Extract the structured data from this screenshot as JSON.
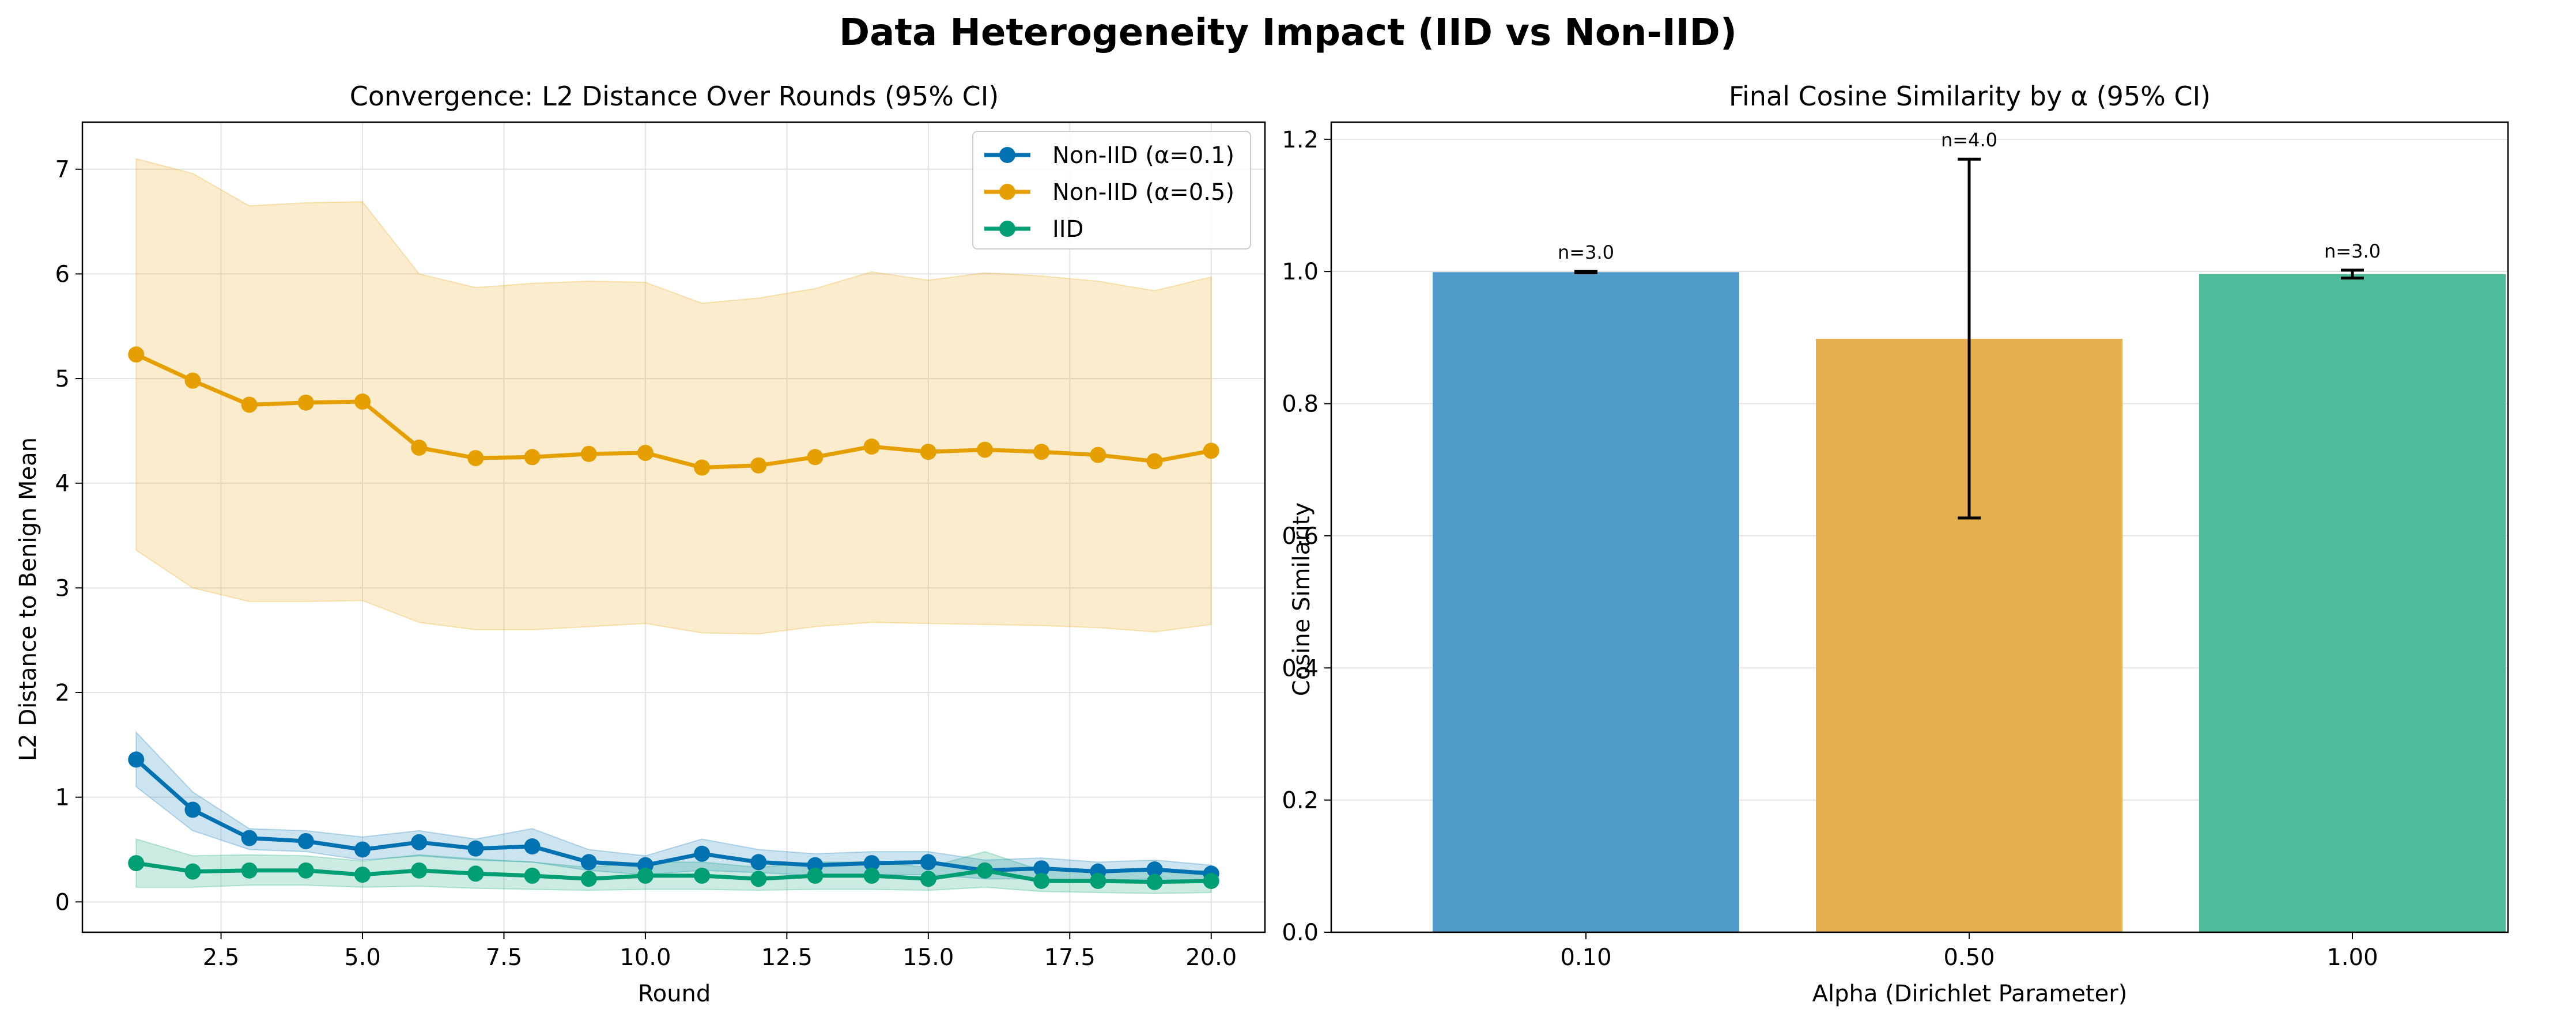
{
  "figure": {
    "suptitle": "Data Heterogeneity Impact (IID vs Non-IID)"
  },
  "chart_data": [
    {
      "type": "line",
      "title": "Convergence: L2 Distance Over Rounds (95% CI)",
      "xlabel": "Round",
      "ylabel": "L2 Distance to Benign Mean",
      "xlim": [
        0.05,
        20.95
      ],
      "ylim": [
        -0.29,
        7.45
      ],
      "xticks": [
        2.5,
        5.0,
        7.5,
        10.0,
        12.5,
        15.0,
        17.5,
        20.0
      ],
      "xtick_labels": [
        "2.5",
        "5.0",
        "7.5",
        "10.0",
        "12.5",
        "15.0",
        "17.5",
        "20.0"
      ],
      "yticks": [
        0,
        1,
        2,
        3,
        4,
        5,
        6,
        7
      ],
      "ytick_labels": [
        "0",
        "1",
        "2",
        "3",
        "4",
        "5",
        "6",
        "7"
      ],
      "grid": true,
      "legend_position": "top-right",
      "x": [
        1,
        2,
        3,
        4,
        5,
        6,
        7,
        8,
        9,
        10,
        11,
        12,
        13,
        14,
        15,
        16,
        17,
        18,
        19,
        20
      ],
      "series": [
        {
          "name": "Non-IID (α=0.1)",
          "color": "#0072B2",
          "values": [
            1.36,
            0.88,
            0.61,
            0.58,
            0.5,
            0.57,
            0.51,
            0.53,
            0.38,
            0.35,
            0.46,
            0.38,
            0.35,
            0.37,
            0.38,
            0.3,
            0.32,
            0.29,
            0.31,
            0.27
          ],
          "ci_lower": [
            1.1,
            0.68,
            0.5,
            0.48,
            0.4,
            0.44,
            0.4,
            0.38,
            0.3,
            0.26,
            0.3,
            0.28,
            0.25,
            0.26,
            0.26,
            0.22,
            0.22,
            0.2,
            0.22,
            0.2
          ],
          "ci_upper": [
            1.62,
            1.05,
            0.7,
            0.68,
            0.62,
            0.68,
            0.6,
            0.7,
            0.5,
            0.44,
            0.6,
            0.5,
            0.46,
            0.48,
            0.48,
            0.4,
            0.42,
            0.38,
            0.4,
            0.35
          ]
        },
        {
          "name": "Non-IID (α=0.5)",
          "color": "#E69F00",
          "values": [
            5.23,
            4.98,
            4.75,
            4.77,
            4.78,
            4.34,
            4.24,
            4.25,
            4.28,
            4.29,
            4.15,
            4.17,
            4.25,
            4.35,
            4.3,
            4.32,
            4.3,
            4.27,
            4.21,
            4.31
          ],
          "ci_lower": [
            3.36,
            3.0,
            2.87,
            2.87,
            2.88,
            2.67,
            2.6,
            2.6,
            2.63,
            2.66,
            2.57,
            2.56,
            2.63,
            2.67,
            2.66,
            2.65,
            2.64,
            2.62,
            2.58,
            2.65
          ],
          "ci_upper": [
            7.1,
            6.96,
            6.65,
            6.68,
            6.69,
            6.0,
            5.87,
            5.91,
            5.93,
            5.92,
            5.72,
            5.77,
            5.86,
            6.02,
            5.94,
            6.01,
            5.98,
            5.93,
            5.84,
            5.97
          ]
        },
        {
          "name": "IID",
          "color": "#009E73",
          "values": [
            0.37,
            0.29,
            0.3,
            0.3,
            0.26,
            0.3,
            0.27,
            0.25,
            0.22,
            0.25,
            0.25,
            0.22,
            0.25,
            0.25,
            0.22,
            0.3,
            0.2,
            0.2,
            0.19,
            0.2
          ],
          "ci_lower": [
            0.14,
            0.14,
            0.16,
            0.16,
            0.14,
            0.15,
            0.13,
            0.12,
            0.11,
            0.12,
            0.12,
            0.11,
            0.12,
            0.12,
            0.11,
            0.14,
            0.1,
            0.09,
            0.08,
            0.09
          ],
          "ci_upper": [
            0.6,
            0.44,
            0.45,
            0.44,
            0.39,
            0.45,
            0.41,
            0.38,
            0.33,
            0.38,
            0.38,
            0.33,
            0.38,
            0.38,
            0.33,
            0.48,
            0.3,
            0.3,
            0.29,
            0.3
          ]
        }
      ]
    },
    {
      "type": "bar",
      "title": "Final Cosine Similarity by α (95% CI)",
      "xlabel": "Alpha (Dirichlet Parameter)",
      "ylabel": "Cosine Similarity",
      "categories": [
        "0.10",
        "0.50",
        "1.00"
      ],
      "values": [
        0.999,
        0.898,
        0.996
      ],
      "err_low": [
        0.998,
        0.627,
        0.99
      ],
      "err_high": [
        1.0,
        1.17,
        1.002
      ],
      "annotations": [
        "n=3.0",
        "n=4.0",
        "n=3.0"
      ],
      "colors": [
        "#4E9BCA",
        "#E6AF4D",
        "#4EBB9A"
      ],
      "ylim": [
        0.0,
        1.226
      ],
      "yticks": [
        0.0,
        0.2,
        0.4,
        0.6,
        0.8,
        1.0,
        1.2
      ],
      "ytick_labels": [
        "0.0",
        "0.2",
        "0.4",
        "0.6",
        "0.8",
        "1.0",
        "1.2"
      ],
      "grid": true
    }
  ]
}
